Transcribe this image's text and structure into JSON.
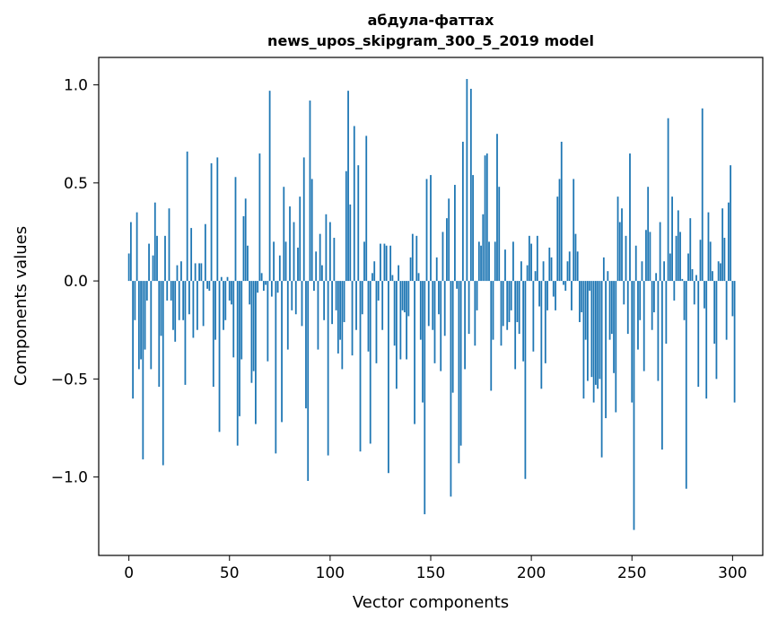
{
  "chart_data": {
    "type": "bar",
    "title": "абдула-фаттах",
    "subtitle": "news_upos_skipgram_300_5_2019 model",
    "xlabel": "Vector components",
    "ylabel": "Components values",
    "xlim": [
      -15,
      315
    ],
    "ylim": [
      -1.4,
      1.14
    ],
    "xticks": [
      0,
      50,
      100,
      150,
      200,
      250,
      300
    ],
    "xtick_labels": [
      "0",
      "50",
      "100",
      "150",
      "200",
      "250",
      "300"
    ],
    "yticks": [
      -1.0,
      -0.5,
      0.0,
      0.5,
      1.0
    ],
    "ytick_labels": [
      "−1.0",
      "−0.5",
      "0.0",
      "0.5",
      "1.0"
    ],
    "grid": false,
    "bar_color": "#1f77b4",
    "values": [
      0.14,
      0.3,
      -0.6,
      -0.2,
      0.35,
      -0.45,
      -0.4,
      -0.91,
      -0.35,
      -0.1,
      0.19,
      -0.45,
      0.13,
      0.4,
      0.23,
      -0.54,
      -0.28,
      -0.94,
      0.23,
      -0.1,
      0.37,
      -0.1,
      -0.25,
      -0.31,
      0.08,
      -0.2,
      0.1,
      -0.2,
      -0.53,
      0.66,
      -0.17,
      0.27,
      -0.29,
      0.09,
      -0.25,
      0.09,
      0.09,
      -0.23,
      0.29,
      -0.04,
      -0.05,
      0.6,
      -0.54,
      -0.3,
      0.63,
      -0.77,
      0.02,
      -0.25,
      -0.2,
      0.02,
      -0.1,
      -0.12,
      -0.39,
      0.53,
      -0.84,
      -0.69,
      -0.4,
      0.33,
      0.42,
      0.18,
      -0.12,
      -0.52,
      -0.46,
      -0.73,
      -0.06,
      0.65,
      0.04,
      -0.05,
      -0.02,
      -0.41,
      0.97,
      -0.08,
      0.2,
      -0.88,
      -0.06,
      0.13,
      -0.72,
      0.48,
      0.2,
      -0.35,
      0.38,
      -0.15,
      0.3,
      -0.17,
      0.17,
      0.43,
      -0.23,
      0.63,
      -0.65,
      -1.02,
      0.92,
      0.52,
      -0.05,
      0.15,
      -0.35,
      0.24,
      0.08,
      -0.2,
      0.34,
      -0.89,
      0.3,
      -0.22,
      0.22,
      -0.15,
      -0.37,
      -0.3,
      -0.45,
      -0.21,
      0.56,
      0.97,
      0.39,
      -0.38,
      0.79,
      -0.25,
      0.59,
      -0.87,
      -0.17,
      0.2,
      0.74,
      -0.36,
      -0.83,
      0.04,
      0.1,
      -0.42,
      -0.1,
      0.19,
      -0.25,
      0.19,
      0.18,
      -0.98,
      0.18,
      0.03,
      -0.33,
      -0.55,
      0.08,
      -0.4,
      -0.15,
      -0.16,
      -0.4,
      -0.18,
      0.12,
      0.24,
      -0.73,
      0.23,
      0.04,
      -0.3,
      -0.62,
      -1.19,
      0.52,
      -0.23,
      0.54,
      -0.25,
      -0.42,
      0.12,
      -0.17,
      -0.46,
      0.25,
      -0.28,
      0.32,
      0.42,
      -1.1,
      -0.57,
      0.49,
      -0.04,
      -0.93,
      -0.84,
      0.71,
      -0.45,
      1.03,
      -0.27,
      0.98,
      0.54,
      -0.33,
      -0.15,
      0.2,
      0.18,
      0.34,
      0.64,
      0.65,
      0.2,
      -0.56,
      -0.3,
      0.2,
      0.75,
      0.48,
      -0.33,
      -0.23,
      0.16,
      -0.25,
      -0.21,
      -0.15,
      0.2,
      -0.45,
      -0.21,
      -0.27,
      0.1,
      -0.41,
      -1.01,
      0.08,
      0.23,
      0.19,
      -0.36,
      0.05,
      0.23,
      -0.13,
      -0.55,
      0.1,
      -0.42,
      -0.15,
      0.17,
      0.12,
      -0.08,
      -0.15,
      0.43,
      0.52,
      0.71,
      -0.02,
      -0.05,
      0.1,
      0.15,
      -0.15,
      0.52,
      0.24,
      0.15,
      -0.21,
      -0.16,
      -0.6,
      -0.3,
      -0.51,
      -0.05,
      -0.49,
      -0.62,
      -0.53,
      -0.55,
      -0.5,
      -0.9,
      0.12,
      -0.7,
      0.05,
      -0.3,
      -0.27,
      -0.47,
      -0.67,
      0.43,
      0.3,
      0.37,
      -0.12,
      0.23,
      -0.27,
      0.65,
      -0.62,
      -1.27,
      0.18,
      -0.35,
      -0.2,
      0.1,
      -0.46,
      0.26,
      0.48,
      0.25,
      -0.25,
      -0.16,
      0.04,
      -0.51,
      0.3,
      -0.86,
      0.1,
      -0.32,
      0.83,
      0.14,
      0.43,
      -0.1,
      0.23,
      0.36,
      0.25,
      0.01,
      -0.2,
      -1.06,
      0.14,
      0.32,
      0.06,
      -0.12,
      0.03,
      -0.54,
      0.21,
      0.88,
      -0.14,
      -0.6,
      0.35,
      0.2,
      0.05,
      -0.32,
      -0.5,
      0.1,
      0.09,
      0.37,
      0.22,
      -0.3,
      0.4,
      0.59,
      -0.18,
      -0.62
    ]
  }
}
